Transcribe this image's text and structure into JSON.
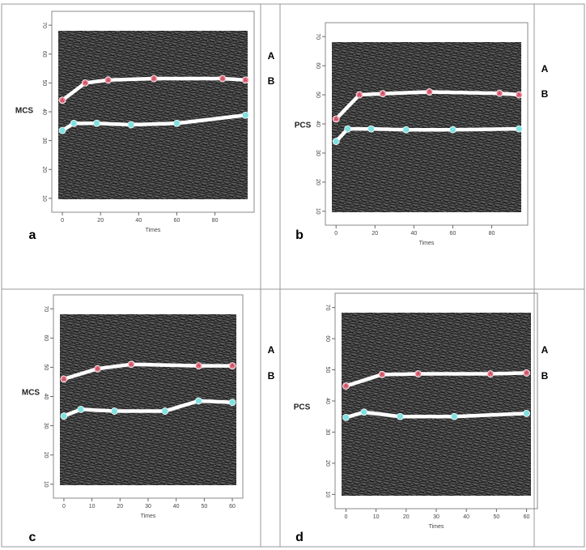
{
  "chart_data": [
    {
      "type": "line",
      "panel_label": "a",
      "ylabel": "MCS",
      "xlabel": "Times",
      "xlim": [
        -3,
        98
      ],
      "ylim": [
        8,
        72
      ],
      "xticks": [
        0,
        20,
        40,
        60,
        80
      ],
      "yticks": [
        10,
        20,
        30,
        40,
        50,
        60,
        70
      ],
      "series": [
        {
          "name": "A",
          "color": "#e87a8c",
          "x": [
            0,
            12,
            24,
            48,
            84,
            96
          ],
          "values": [
            44,
            50,
            51,
            51.5,
            51.5,
            51
          ]
        },
        {
          "name": "B",
          "color": "#7fe0e0",
          "x": [
            0,
            6,
            18,
            36,
            60,
            96
          ],
          "values": [
            33.5,
            36,
            36,
            35.5,
            36,
            38.8
          ]
        }
      ]
    },
    {
      "type": "line",
      "panel_label": "b",
      "ylabel": "PCS",
      "xlabel": "Times",
      "xlim": [
        -3,
        96
      ],
      "ylim": [
        8,
        72
      ],
      "xticks": [
        0,
        20,
        40,
        60,
        80
      ],
      "yticks": [
        10,
        20,
        30,
        40,
        50,
        60,
        70
      ],
      "series": [
        {
          "name": "A",
          "color": "#e87a8c",
          "x": [
            0,
            12,
            24,
            48,
            84,
            94
          ],
          "values": [
            41.7,
            50,
            50.4,
            51,
            50.5,
            50
          ]
        },
        {
          "name": "B",
          "color": "#7fe0e0",
          "x": [
            0,
            6,
            18,
            36,
            60,
            94
          ],
          "values": [
            34,
            38.3,
            38.3,
            38,
            38,
            38.3
          ]
        }
      ]
    },
    {
      "type": "line",
      "panel_label": "c",
      "ylabel": "MCS",
      "xlabel": "Times",
      "xlim": [
        -2,
        62
      ],
      "ylim": [
        8,
        72
      ],
      "xticks": [
        0,
        10,
        20,
        30,
        40,
        50,
        60
      ],
      "yticks": [
        10,
        20,
        30,
        40,
        50,
        60,
        70
      ],
      "series": [
        {
          "name": "A",
          "color": "#e87a8c",
          "x": [
            0,
            12,
            24,
            48,
            60
          ],
          "values": [
            46,
            49.5,
            51,
            50.5,
            50.5
          ]
        },
        {
          "name": "B",
          "color": "#7fe0e0",
          "x": [
            0,
            6,
            18,
            36,
            48,
            60
          ],
          "values": [
            33.3,
            35.6,
            35,
            35,
            38.5,
            38
          ]
        }
      ]
    },
    {
      "type": "line",
      "panel_label": "d",
      "ylabel": "PCS",
      "xlabel": "Times",
      "xlim": [
        -2,
        62
      ],
      "ylim": [
        8,
        72
      ],
      "xticks": [
        0,
        10,
        20,
        30,
        40,
        50,
        60
      ],
      "yticks": [
        10,
        20,
        30,
        40,
        50,
        60,
        70
      ],
      "series": [
        {
          "name": "A",
          "color": "#e87a8c",
          "x": [
            0,
            12,
            24,
            48,
            60
          ],
          "values": [
            44.8,
            48.5,
            48.7,
            48.7,
            49
          ]
        },
        {
          "name": "B",
          "color": "#7fe0e0",
          "x": [
            0,
            6,
            18,
            36,
            60
          ],
          "values": [
            34.7,
            36.4,
            35,
            35,
            36
          ]
        }
      ]
    }
  ]
}
